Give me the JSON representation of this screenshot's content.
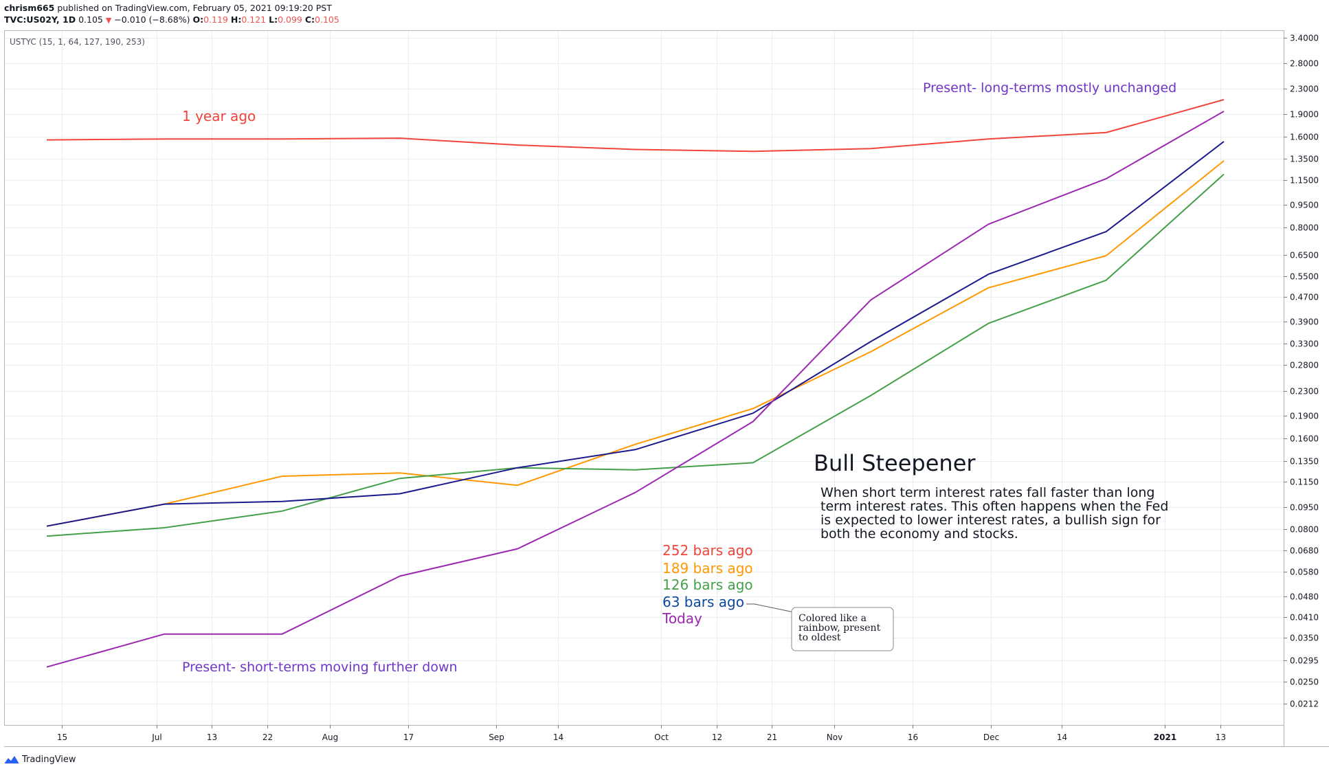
{
  "header": {
    "author": "chrism665",
    "published_text": "published on TradingView.com, February 05, 2021 09:19:20 PST",
    "symbol": "TVC:US02Y, 1D",
    "last": "0.105",
    "change": "−0.010 (−8.68%)",
    "o_label": "O:",
    "o_value": "0.119",
    "h_label": "H:",
    "h_value": "0.121",
    "l_label": "L:",
    "l_value": "0.099",
    "c_label": "C:",
    "c_value": "0.105"
  },
  "indicator_label": "USTYC (15, 1, 64, 127, 190, 253)",
  "footer": {
    "brand": "TradingView"
  },
  "colors": {
    "red": "#f0433a",
    "orange": "#ff9800",
    "green": "#43a047",
    "navy": "#1a1a8c",
    "purple": "#9c27b0",
    "annotation_purple": "#6f35c7",
    "blue_text": "#0d47a1",
    "grid": "#e6eef2"
  },
  "annotations": {
    "one_year_ago": "1 year ago",
    "long_terms": "Present- long-terms mostly unchanged",
    "short_terms": "Present- short-terms moving further down",
    "title": "Bull Steepener",
    "body_lines": [
      "When short term interest rates fall faster than long",
      "term interest rates.  This often happens when the Fed",
      "is expected to lower interest rates, a bullish sign for",
      "both the economy and stocks."
    ],
    "callout_lines": [
      "Colored like a",
      "rainbow, present",
      "to oldest"
    ]
  },
  "chart_data": {
    "type": "line",
    "y_scale": "log",
    "ylim": [
      0.018,
      3.6
    ],
    "x": [
      0,
      1,
      2,
      3,
      4,
      5,
      6,
      7,
      8,
      9,
      10
    ],
    "x_tick_labels": [
      "15",
      "Jul",
      "13",
      "22",
      "Aug",
      "17",
      "Sep",
      "14",
      "Oct",
      "12",
      "21",
      "Nov",
      "16",
      "Dec",
      "14",
      "2021",
      "13"
    ],
    "y_ticks": [
      "3.4000",
      "2.8000",
      "2.3000",
      "1.9000",
      "1.6000",
      "1.3500",
      "1.1500",
      "0.9500",
      "0.8000",
      "0.6500",
      "0.5500",
      "0.4700",
      "0.3900",
      "0.3300",
      "0.2800",
      "0.2300",
      "0.1900",
      "0.1600",
      "0.1350",
      "0.1150",
      "0.0950",
      "0.0800",
      "0.0680",
      "0.0580",
      "0.0480",
      "0.0410",
      "0.0350",
      "0.0295",
      "0.0250",
      "0.0212"
    ],
    "series": [
      {
        "name": "252 bars ago",
        "color": "#f0433a",
        "values": [
          1.56,
          1.57,
          1.57,
          1.58,
          1.5,
          1.45,
          1.43,
          1.46,
          1.57,
          1.65,
          2.12
        ]
      },
      {
        "name": "189 bars ago",
        "color": "#ff9800",
        "values": [
          0.082,
          0.097,
          0.12,
          0.123,
          0.112,
          0.153,
          0.201,
          0.31,
          0.505,
          0.645,
          1.33
        ]
      },
      {
        "name": "126 bars ago",
        "color": "#43a047",
        "values": [
          0.076,
          0.081,
          0.092,
          0.118,
          0.128,
          0.126,
          0.133,
          0.222,
          0.385,
          0.535,
          1.2
        ]
      },
      {
        "name": "63 bars ago",
        "color": "#1a1a8c",
        "values": [
          0.082,
          0.097,
          0.099,
          0.105,
          0.128,
          0.147,
          0.194,
          0.335,
          0.56,
          0.775,
          1.54
        ]
      },
      {
        "name": "Today",
        "color": "#9c27b0",
        "values": [
          0.028,
          0.036,
          0.036,
          0.056,
          0.069,
          0.106,
          0.182,
          0.46,
          0.82,
          1.16,
          1.94
        ]
      }
    ]
  }
}
